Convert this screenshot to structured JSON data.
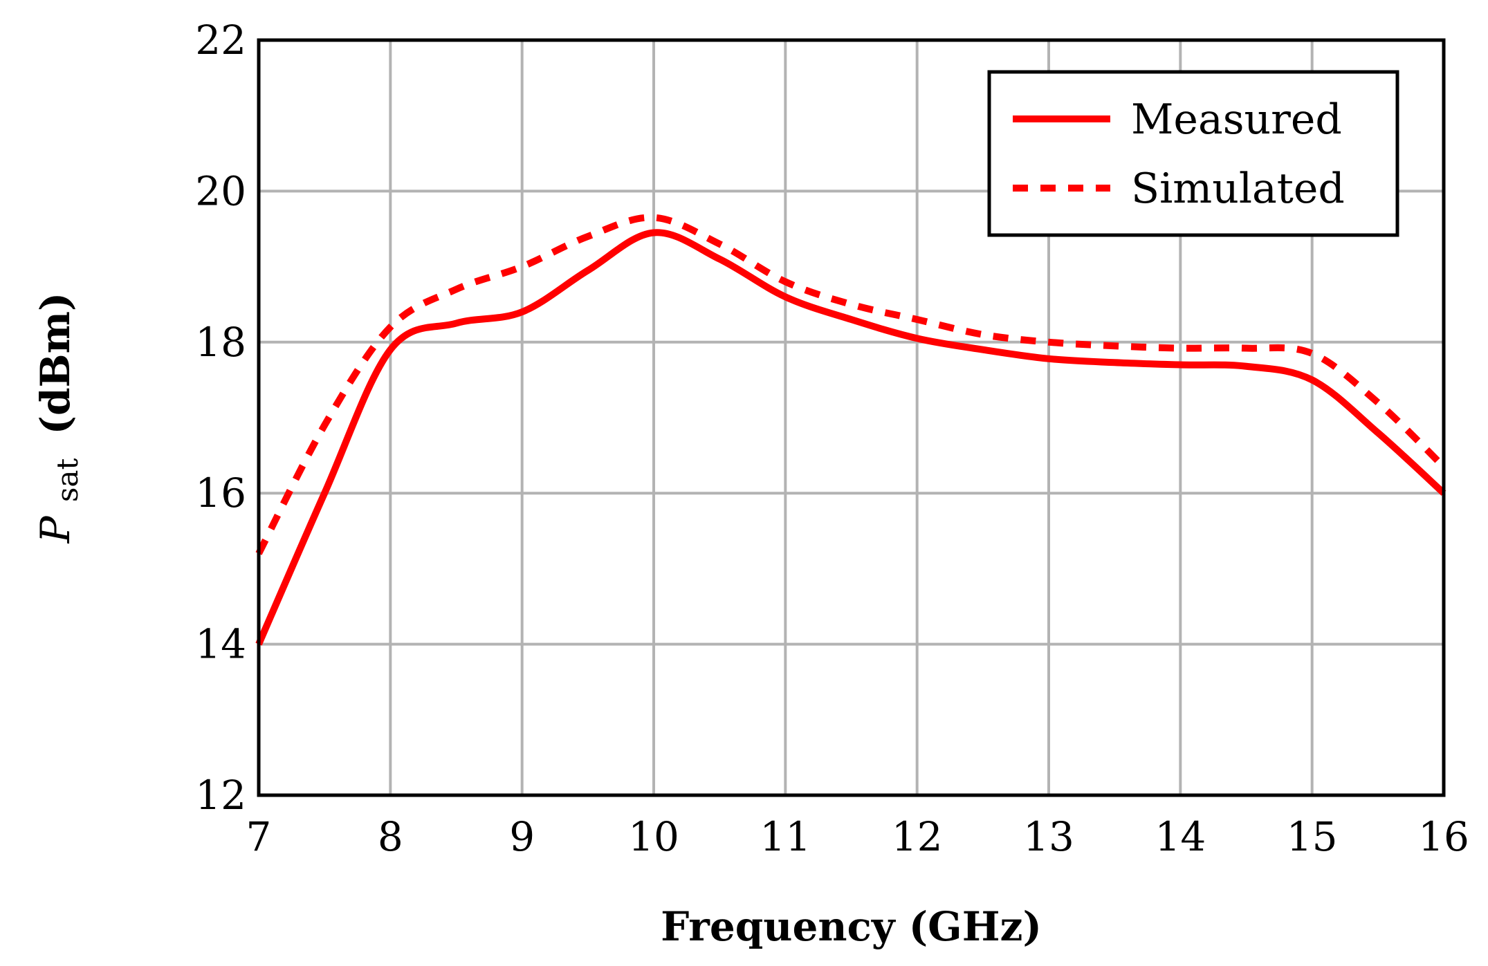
{
  "chart_data": {
    "type": "line",
    "title": "",
    "xlabel": "Frequency (GHz)",
    "ylabel_main": "P",
    "ylabel_sub": "sat",
    "ylabel_unit": "(dBm)",
    "xlim": [
      7,
      16
    ],
    "ylim": [
      12,
      22
    ],
    "xticks": [
      7,
      8,
      9,
      10,
      11,
      12,
      13,
      14,
      15,
      16
    ],
    "yticks": [
      12,
      14,
      16,
      18,
      20,
      22
    ],
    "grid": true,
    "legend_position": "top-right",
    "series": [
      {
        "name": "Measured",
        "style": "solid",
        "color": "#ff0000",
        "x": [
          7,
          7.5,
          8,
          8.5,
          9,
          9.5,
          10,
          10.5,
          11,
          11.5,
          12,
          12.5,
          13,
          13.5,
          14,
          14.5,
          15,
          15.5,
          16
        ],
        "y": [
          14.0,
          16.0,
          17.9,
          18.25,
          18.4,
          18.95,
          19.45,
          19.1,
          18.6,
          18.3,
          18.05,
          17.9,
          17.78,
          17.73,
          17.7,
          17.68,
          17.5,
          16.8,
          16.0
        ]
      },
      {
        "name": "Simulated",
        "style": "dashed",
        "color": "#ff0000",
        "x": [
          7,
          7.5,
          8,
          8.5,
          9,
          9.5,
          10,
          10.5,
          11,
          11.5,
          12,
          12.5,
          13,
          13.5,
          14,
          14.5,
          15,
          15.5,
          16
        ],
        "y": [
          15.2,
          16.9,
          18.2,
          18.7,
          19.0,
          19.4,
          19.65,
          19.3,
          18.8,
          18.5,
          18.3,
          18.1,
          18.0,
          17.95,
          17.92,
          17.92,
          17.85,
          17.2,
          16.35
        ]
      }
    ]
  }
}
